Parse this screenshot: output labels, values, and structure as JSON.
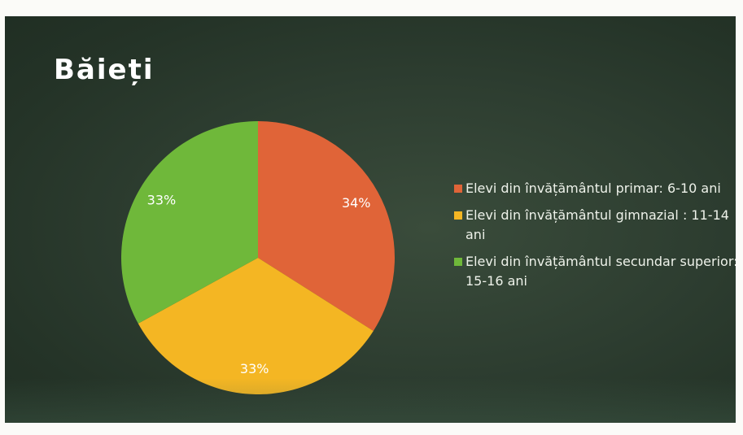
{
  "slide": {
    "title": "Băieți"
  },
  "chart_data": {
    "type": "pie",
    "title": "Băieți",
    "categories": [
      "Elevi din învățământul primar: 6-10 ani",
      "Elevi din învățământul gimnazial : 11-14 ani",
      "Elevi din învățământul secundar superior: 15-16 ani"
    ],
    "values": [
      34,
      33,
      33
    ],
    "data_labels": [
      "34%",
      "33%",
      "33%"
    ],
    "colors": [
      "#e06438",
      "#f4b623",
      "#6fb83a"
    ],
    "legend_position": "right",
    "start_angle_deg": 0,
    "direction": "clockwise"
  }
}
